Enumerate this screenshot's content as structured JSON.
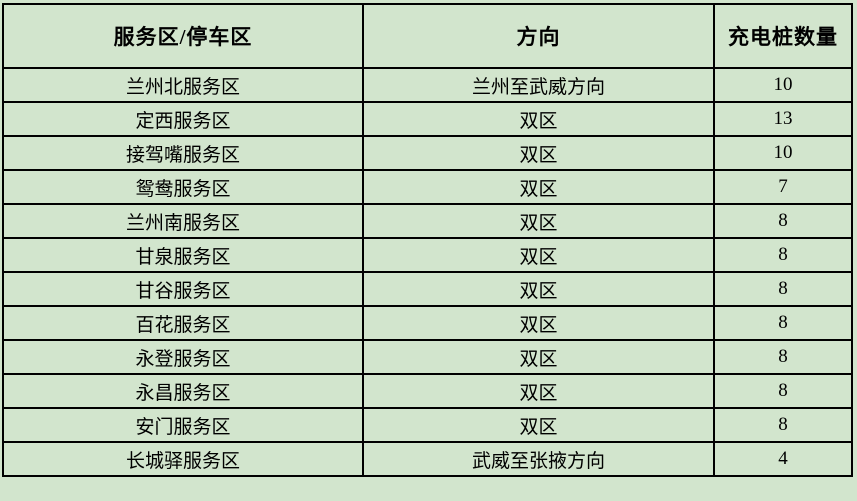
{
  "table": {
    "title_semantic": "highway-service-area-charging-piles",
    "columns": [
      "服务区/停车区",
      "方向",
      "充电桩数量"
    ],
    "rows": [
      [
        "兰州北服务区",
        "兰州至武威方向",
        "10"
      ],
      [
        "定西服务区",
        "双区",
        "13"
      ],
      [
        "接驾嘴服务区",
        "双区",
        "10"
      ],
      [
        "鸳鸯服务区",
        "双区",
        "7"
      ],
      [
        "兰州南服务区",
        "双区",
        "8"
      ],
      [
        "甘泉服务区",
        "双区",
        "8"
      ],
      [
        "甘谷服务区",
        "双区",
        "8"
      ],
      [
        "百花服务区",
        "双区",
        "8"
      ],
      [
        "永登服务区",
        "双区",
        "8"
      ],
      [
        "永昌服务区",
        "双区",
        "8"
      ],
      [
        "安门服务区",
        "双区",
        "8"
      ],
      [
        "长城驿服务区",
        "武威至张掖方向",
        "4"
      ]
    ],
    "colors": {
      "background": "#d2e5cd",
      "border": "#000000",
      "text": "#000000"
    }
  }
}
